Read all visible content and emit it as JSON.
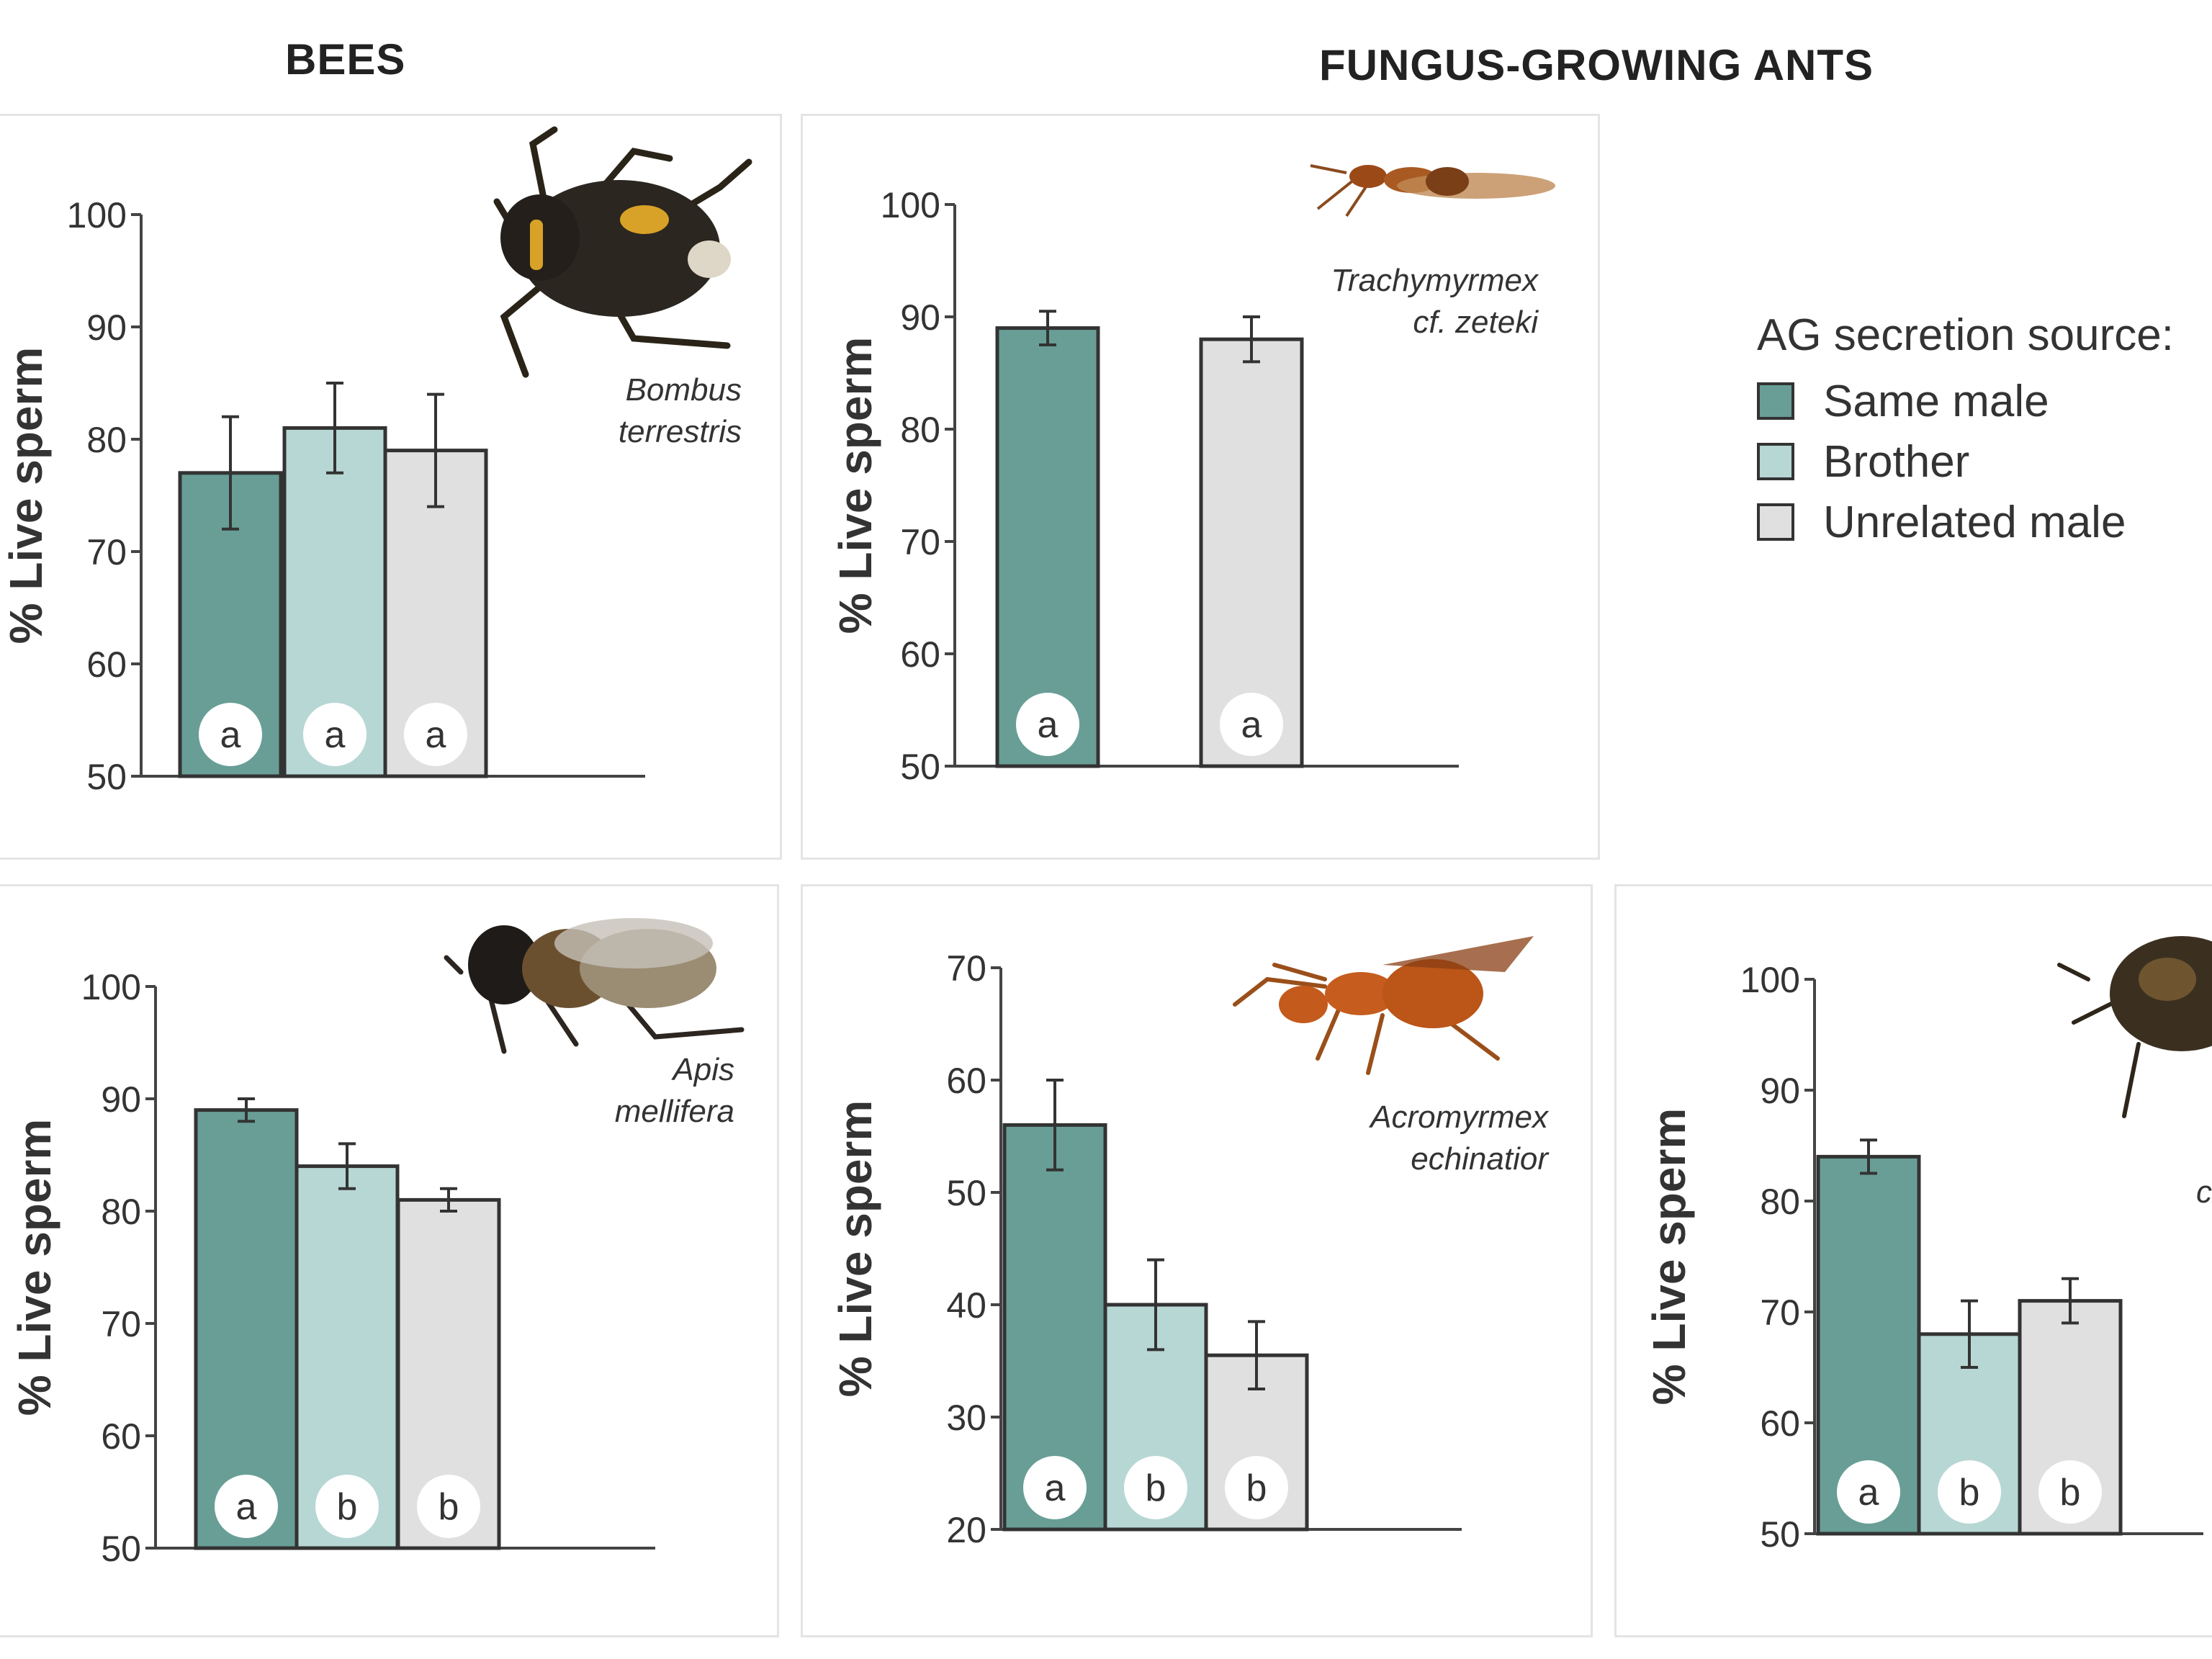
{
  "headings": {
    "bees": "BEES",
    "ants": "FUNGUS-GROWING ANTS"
  },
  "colors": {
    "same_male": "#689e96",
    "brother": "#b7d7d4",
    "unrelated_male": "#e0e0e0",
    "outline": "#333333"
  },
  "legend": {
    "title": "AG secretion source:",
    "items": [
      {
        "label": "Same male",
        "color_key": "same_male"
      },
      {
        "label": "Brother",
        "color_key": "brother"
      },
      {
        "label": "Unrelated male",
        "color_key": "unrelated_male"
      }
    ]
  },
  "chart_data": [
    {
      "type": "bar",
      "group": "BEES",
      "species": "Bombus terrestris",
      "species_lines": [
        "Bombus",
        "terrestris"
      ],
      "ylabel": "% Live sperm",
      "ylim": [
        50,
        100
      ],
      "yticks": [
        50,
        60,
        70,
        80,
        90,
        100
      ],
      "categories": [
        "Same male",
        "Brother",
        "Unrelated male"
      ],
      "values": [
        77,
        81,
        79
      ],
      "errors": [
        5,
        4,
        5
      ],
      "letters": [
        "a",
        "a",
        "a"
      ]
    },
    {
      "type": "bar",
      "group": "FUNGUS-GROWING ANTS",
      "species": "Trachymyrmex cf. zeteki",
      "species_lines": [
        "Trachymyrmex",
        "cf. zeteki"
      ],
      "ylabel": "% Live sperm",
      "ylim": [
        50,
        100
      ],
      "yticks": [
        50,
        60,
        70,
        80,
        90,
        100
      ],
      "categories": [
        "Same male",
        "Brother",
        "Unrelated male"
      ],
      "values": [
        89,
        null,
        88
      ],
      "errors": [
        1.5,
        null,
        2
      ],
      "letters": [
        "a",
        null,
        "a"
      ]
    },
    {
      "type": "bar",
      "group": "BEES",
      "species": "Apis mellifera",
      "species_lines": [
        "Apis",
        "mellifera"
      ],
      "ylabel": "% Live sperm",
      "ylim": [
        50,
        100
      ],
      "yticks": [
        50,
        60,
        70,
        80,
        90,
        100
      ],
      "categories": [
        "Same male",
        "Brother",
        "Unrelated male"
      ],
      "values": [
        89,
        84,
        81
      ],
      "errors": [
        1,
        2,
        1
      ],
      "letters": [
        "a",
        "b",
        "b"
      ]
    },
    {
      "type": "bar",
      "group": "FUNGUS-GROWING ANTS",
      "species": "Acromyrmex echinatior",
      "species_lines": [
        "Acromyrmex",
        "echinatior"
      ],
      "ylabel": "% Live sperm",
      "ylim": [
        20,
        70
      ],
      "yticks": [
        20,
        30,
        40,
        50,
        60,
        70
      ],
      "categories": [
        "Same male",
        "Brother",
        "Unrelated male"
      ],
      "values": [
        56,
        40,
        35.5
      ],
      "errors": [
        4,
        4,
        3
      ],
      "letters": [
        "a",
        "b",
        "b"
      ]
    },
    {
      "type": "bar",
      "group": "FUNGUS-GROWING ANTS",
      "species": "",
      "species_lines": [
        "c"
      ],
      "ylabel": "% Live sperm",
      "ylim": [
        50,
        100
      ],
      "yticks": [
        50,
        60,
        70,
        80,
        90,
        100
      ],
      "categories": [
        "Same male",
        "Brother",
        "Unrelated male"
      ],
      "values": [
        84,
        68,
        71
      ],
      "errors": [
        1.5,
        3,
        2
      ],
      "letters": [
        "a",
        "b",
        "b"
      ]
    }
  ]
}
